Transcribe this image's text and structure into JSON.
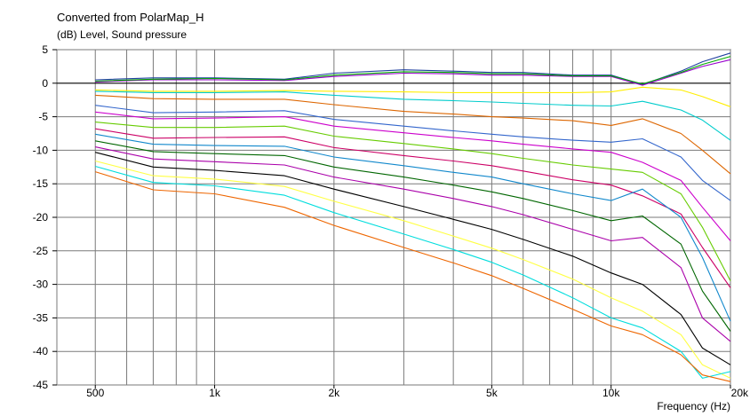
{
  "chart_data": {
    "type": "line",
    "title": "Converted from PolarMap_H",
    "ylabel": "(dB)  Level, Sound pressure",
    "xlabel": "Frequency  (Hz)",
    "x_scale": "log",
    "xlim": [
      400,
      20000
    ],
    "ylim": [
      -45,
      5
    ],
    "grid": true,
    "x_ticks": [
      {
        "value": 500,
        "label": "500"
      },
      {
        "value": 1000,
        "label": "1k"
      },
      {
        "value": 2000,
        "label": "2k"
      },
      {
        "value": 5000,
        "label": "5k"
      },
      {
        "value": 10000,
        "label": "10k"
      },
      {
        "value": 20000,
        "label": "20k"
      }
    ],
    "y_ticks": [
      5,
      0,
      -5,
      -10,
      -15,
      -20,
      -25,
      -30,
      -35,
      -40,
      -45
    ],
    "x": [
      500,
      700,
      1000,
      1500,
      2000,
      3000,
      4000,
      5000,
      6000,
      8000,
      10000,
      12000,
      15000,
      17000,
      20000
    ],
    "series": [
      {
        "color": "#1f3f9f",
        "values": [
          0.5,
          0.8,
          0.8,
          0.6,
          1.5,
          2.0,
          1.8,
          1.6,
          1.6,
          1.2,
          1.2,
          -0.2,
          1.8,
          3.2,
          4.5
        ]
      },
      {
        "color": "#9900cc",
        "values": [
          0.2,
          0.5,
          0.5,
          0.4,
          1.0,
          1.5,
          1.4,
          1.2,
          1.2,
          1.0,
          1.0,
          -0.3,
          1.5,
          2.5,
          3.5
        ]
      },
      {
        "color": "#00aa00",
        "values": [
          0.3,
          0.6,
          0.7,
          0.5,
          1.2,
          1.7,
          1.6,
          1.4,
          1.4,
          1.1,
          1.1,
          -0.1,
          1.6,
          2.8,
          4.0
        ]
      },
      {
        "color": "#ffee00",
        "values": [
          -1.0,
          -1.2,
          -1.2,
          -1.1,
          -1.2,
          -1.3,
          -1.4,
          -1.4,
          -1.4,
          -1.4,
          -1.3,
          -0.6,
          -1.0,
          -2.0,
          -3.5
        ]
      },
      {
        "color": "#00cccc",
        "values": [
          -1.2,
          -1.4,
          -1.4,
          -1.3,
          -1.8,
          -2.4,
          -2.6,
          -2.8,
          -3.0,
          -3.3,
          -3.4,
          -2.7,
          -4.0,
          -5.5,
          -8.5
        ]
      },
      {
        "color": "#dd6600",
        "values": [
          -1.8,
          -2.3,
          -2.4,
          -2.4,
          -3.2,
          -4.2,
          -4.6,
          -5.0,
          -5.2,
          -5.6,
          -6.3,
          -5.3,
          -7.5,
          -10.0,
          -13.5
        ]
      },
      {
        "color": "#3366cc",
        "values": [
          -3.3,
          -4.4,
          -4.3,
          -4.1,
          -5.4,
          -6.4,
          -7.1,
          -7.6,
          -8.0,
          -8.5,
          -8.8,
          -8.3,
          -11.0,
          -14.5,
          -17.5
        ]
      },
      {
        "color": "#cc00cc",
        "values": [
          -4.3,
          -5.3,
          -5.2,
          -5.0,
          -6.4,
          -7.4,
          -8.1,
          -8.6,
          -9.1,
          -9.8,
          -10.3,
          -11.8,
          -14.5,
          -18.5,
          -23.5
        ]
      },
      {
        "color": "#66cc00",
        "values": [
          -5.8,
          -6.6,
          -6.6,
          -6.4,
          -7.9,
          -9.0,
          -9.8,
          -10.5,
          -11.2,
          -12.2,
          -12.8,
          -13.3,
          -16.5,
          -21.5,
          -29.5
        ]
      },
      {
        "color": "#cc0066",
        "values": [
          -6.8,
          -8.2,
          -8.1,
          -8.0,
          -9.6,
          -10.8,
          -11.6,
          -12.3,
          -13.1,
          -14.4,
          -15.2,
          -16.8,
          -19.5,
          -24.5,
          -30.5
        ]
      },
      {
        "color": "#1188cc",
        "values": [
          -7.6,
          -9.1,
          -9.3,
          -9.4,
          -11.0,
          -12.3,
          -13.3,
          -14.0,
          -15.0,
          -16.5,
          -17.5,
          -15.8,
          -20.0,
          -26.0,
          -35.5
        ]
      },
      {
        "color": "#006600",
        "values": [
          -8.6,
          -10.2,
          -10.5,
          -10.8,
          -12.5,
          -14.0,
          -15.2,
          -16.2,
          -17.2,
          -19.0,
          -20.5,
          -19.8,
          -24.0,
          -31.0,
          -37.0
        ]
      },
      {
        "color": "#aa00aa",
        "values": [
          -9.5,
          -11.3,
          -11.7,
          -12.2,
          -14.0,
          -15.8,
          -17.2,
          -18.4,
          -19.6,
          -21.8,
          -23.5,
          -23.0,
          -27.5,
          -35.0,
          -38.5
        ]
      },
      {
        "color": "#000000",
        "values": [
          -10.3,
          -12.5,
          -13.0,
          -13.8,
          -15.8,
          -18.4,
          -20.3,
          -21.8,
          -23.3,
          -25.8,
          -28.3,
          -30.0,
          -34.5,
          -39.5,
          -42.0
        ]
      },
      {
        "color": "#ffff44",
        "values": [
          -11.6,
          -13.8,
          -14.3,
          -15.4,
          -17.6,
          -20.5,
          -22.8,
          -24.6,
          -26.3,
          -29.2,
          -32.0,
          -34.0,
          -37.5,
          -42.0,
          -44.0
        ]
      },
      {
        "color": "#00dddd",
        "values": [
          -12.4,
          -14.8,
          -15.3,
          -16.7,
          -19.3,
          -22.5,
          -24.8,
          -26.7,
          -28.6,
          -32.0,
          -35.0,
          -36.5,
          -40.0,
          -44.0,
          -43.0
        ]
      },
      {
        "color": "#ee6600",
        "values": [
          -13.2,
          -15.9,
          -16.5,
          -18.5,
          -21.2,
          -24.5,
          -26.8,
          -28.7,
          -30.6,
          -33.7,
          -36.2,
          -37.5,
          -40.5,
          -43.5,
          -44.5
        ]
      }
    ]
  }
}
